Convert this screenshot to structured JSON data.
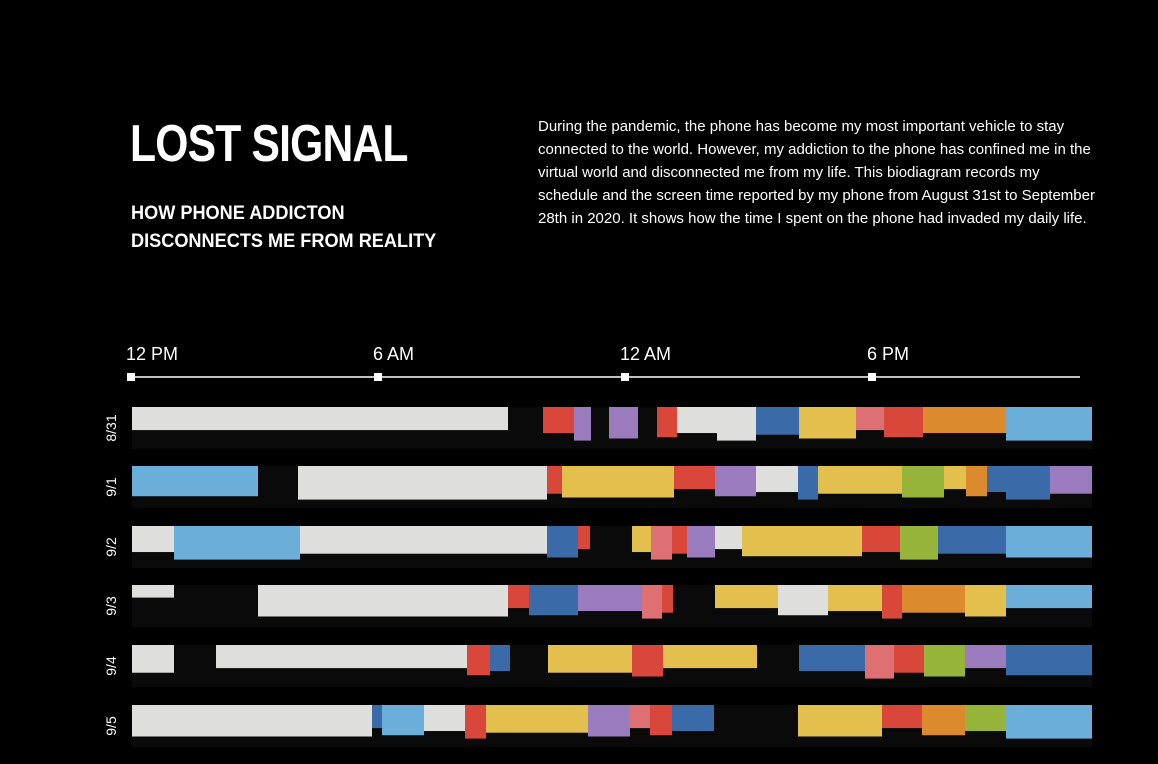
{
  "header": {
    "title": "LOST SIGNAL",
    "subtitle_lines": [
      "HOW PHONE ADDICTON",
      "DISCONNECTS ME FROM REALITY"
    ],
    "description_lines": [
      "During the pandemic, the phone has become my most important vehicle to stay",
      "connected to the world. However, my addiction to the phone has confined me in the",
      "virtual world and disconnected me from my life. This biodiagram records my",
      "schedule and the screen time reported by my phone from August 31st to September",
      "28th in 2020. It shows how the time I spent on the phone had invaded my daily life."
    ]
  },
  "timeline": {
    "ticks": [
      "12 PM",
      "6 AM",
      "12 AM",
      "6 PM"
    ]
  },
  "colors": {
    "sleep": "#dedfdd",
    "black": "#0a0a0a",
    "blue": "#3a6aa8",
    "lightblue": "#6aaed9",
    "yellow": "#e3c04d",
    "orange": "#db8a2e",
    "red": "#d84739",
    "pink": "#de6f73",
    "purple": "#9a7bbd",
    "green": "#97b43a"
  },
  "days": [
    {
      "label": "8/31",
      "segments": [
        {
          "start": 0,
          "end": 376,
          "category": "sleep",
          "level": 1
        },
        {
          "start": 376,
          "end": 411,
          "category": "black",
          "level": 0.35
        },
        {
          "start": 411,
          "end": 442,
          "category": "red",
          "level": 1
        },
        {
          "start": 442,
          "end": 459,
          "category": "purple",
          "level": 1
        },
        {
          "start": 459,
          "end": 477,
          "category": "black",
          "level": 1
        },
        {
          "start": 477,
          "end": 506,
          "category": "purple",
          "level": 1
        },
        {
          "start": 506,
          "end": 525,
          "category": "black",
          "level": 1
        },
        {
          "start": 525,
          "end": 545,
          "category": "red",
          "level": 1
        },
        {
          "start": 545,
          "end": 585,
          "category": "sleep",
          "level": 1
        },
        {
          "start": 585,
          "end": 624,
          "category": "sleep",
          "level": 1
        },
        {
          "start": 624,
          "end": 667,
          "category": "blue",
          "level": 1
        },
        {
          "start": 667,
          "end": 724,
          "category": "yellow",
          "level": 1
        },
        {
          "start": 724,
          "end": 752,
          "category": "pink",
          "level": 1
        },
        {
          "start": 752,
          "end": 791,
          "category": "red",
          "level": 1
        },
        {
          "start": 791,
          "end": 874,
          "category": "orange",
          "level": 1
        },
        {
          "start": 874,
          "end": 960,
          "category": "lightblue",
          "level": 1
        }
      ]
    },
    {
      "label": "9/1",
      "segments": [
        {
          "start": 0,
          "end": 126,
          "category": "lightblue",
          "level": 1
        },
        {
          "start": 126,
          "end": 166,
          "category": "black",
          "level": 0.3
        },
        {
          "start": 166,
          "end": 415,
          "category": "sleep",
          "level": 1
        },
        {
          "start": 415,
          "end": 430,
          "category": "red",
          "level": 1
        },
        {
          "start": 430,
          "end": 542,
          "category": "yellow",
          "level": 1
        },
        {
          "start": 542,
          "end": 583,
          "category": "red",
          "level": 1
        },
        {
          "start": 583,
          "end": 624,
          "category": "purple",
          "level": 1
        },
        {
          "start": 624,
          "end": 666,
          "category": "sleep",
          "level": 1
        },
        {
          "start": 666,
          "end": 686,
          "category": "blue",
          "level": 1
        },
        {
          "start": 686,
          "end": 770,
          "category": "yellow",
          "level": 1
        },
        {
          "start": 770,
          "end": 812,
          "category": "green",
          "level": 1
        },
        {
          "start": 812,
          "end": 834,
          "category": "yellow",
          "level": 1
        },
        {
          "start": 834,
          "end": 855,
          "category": "orange",
          "level": 1
        },
        {
          "start": 855,
          "end": 874,
          "category": "blue",
          "level": 1
        },
        {
          "start": 874,
          "end": 918,
          "category": "blue",
          "level": 1
        },
        {
          "start": 918,
          "end": 960,
          "category": "purple",
          "level": 1
        }
      ]
    },
    {
      "label": "9/2",
      "segments": [
        {
          "start": 0,
          "end": 42,
          "category": "sleep",
          "level": 1
        },
        {
          "start": 42,
          "end": 168,
          "category": "lightblue",
          "level": 1
        },
        {
          "start": 168,
          "end": 415,
          "category": "sleep",
          "level": 1
        },
        {
          "start": 415,
          "end": 446,
          "category": "blue",
          "level": 1
        },
        {
          "start": 446,
          "end": 458,
          "category": "red",
          "level": 1
        },
        {
          "start": 458,
          "end": 500,
          "category": "black",
          "level": 1
        },
        {
          "start": 500,
          "end": 519,
          "category": "yellow",
          "level": 1
        },
        {
          "start": 519,
          "end": 540,
          "category": "pink",
          "level": 1
        },
        {
          "start": 540,
          "end": 555,
          "category": "red",
          "level": 1
        },
        {
          "start": 555,
          "end": 583,
          "category": "purple",
          "level": 1
        },
        {
          "start": 583,
          "end": 610,
          "category": "sleep",
          "level": 1
        },
        {
          "start": 610,
          "end": 730,
          "category": "yellow",
          "level": 1
        },
        {
          "start": 730,
          "end": 768,
          "category": "red",
          "level": 1
        },
        {
          "start": 768,
          "end": 806,
          "category": "green",
          "level": 1
        },
        {
          "start": 806,
          "end": 874,
          "category": "blue",
          "level": 1
        },
        {
          "start": 874,
          "end": 960,
          "category": "lightblue",
          "level": 1
        }
      ]
    },
    {
      "label": "9/3",
      "segments": [
        {
          "start": 0,
          "end": 42,
          "category": "sleep",
          "level": 0.3
        },
        {
          "start": 42,
          "end": 126,
          "category": "black",
          "level": 1
        },
        {
          "start": 126,
          "end": 376,
          "category": "sleep",
          "level": 1
        },
        {
          "start": 376,
          "end": 397,
          "category": "red",
          "level": 1
        },
        {
          "start": 397,
          "end": 446,
          "category": "blue",
          "level": 1
        },
        {
          "start": 446,
          "end": 510,
          "category": "purple",
          "level": 1
        },
        {
          "start": 510,
          "end": 530,
          "category": "pink",
          "level": 1
        },
        {
          "start": 530,
          "end": 541,
          "category": "red",
          "level": 1
        },
        {
          "start": 541,
          "end": 583,
          "category": "black",
          "level": 1
        },
        {
          "start": 583,
          "end": 646,
          "category": "yellow",
          "level": 1
        },
        {
          "start": 646,
          "end": 696,
          "category": "sleep",
          "level": 1
        },
        {
          "start": 696,
          "end": 750,
          "category": "yellow",
          "level": 1
        },
        {
          "start": 750,
          "end": 770,
          "category": "red",
          "level": 1
        },
        {
          "start": 770,
          "end": 833,
          "category": "orange",
          "level": 1
        },
        {
          "start": 833,
          "end": 874,
          "category": "yellow",
          "level": 1
        },
        {
          "start": 874,
          "end": 960,
          "category": "lightblue",
          "level": 1
        }
      ]
    },
    {
      "label": "9/4",
      "segments": [
        {
          "start": 0,
          "end": 42,
          "category": "sleep",
          "level": 1
        },
        {
          "start": 42,
          "end": 84,
          "category": "black",
          "level": 1
        },
        {
          "start": 84,
          "end": 335,
          "category": "sleep",
          "level": 1
        },
        {
          "start": 335,
          "end": 358,
          "category": "red",
          "level": 1
        },
        {
          "start": 358,
          "end": 378,
          "category": "blue",
          "level": 1
        },
        {
          "start": 378,
          "end": 416,
          "category": "black",
          "level": 1
        },
        {
          "start": 416,
          "end": 500,
          "category": "yellow",
          "level": 1
        },
        {
          "start": 500,
          "end": 531,
          "category": "red",
          "level": 1
        },
        {
          "start": 531,
          "end": 625,
          "category": "yellow",
          "level": 1
        },
        {
          "start": 625,
          "end": 667,
          "category": "black",
          "level": 1
        },
        {
          "start": 667,
          "end": 733,
          "category": "blue",
          "level": 1
        },
        {
          "start": 733,
          "end": 762,
          "category": "pink",
          "level": 1
        },
        {
          "start": 762,
          "end": 792,
          "category": "red",
          "level": 1
        },
        {
          "start": 792,
          "end": 833,
          "category": "green",
          "level": 1
        },
        {
          "start": 833,
          "end": 874,
          "category": "purple",
          "level": 1
        },
        {
          "start": 874,
          "end": 960,
          "category": "blue",
          "level": 1
        }
      ]
    },
    {
      "label": "9/5",
      "segments": [
        {
          "start": 0,
          "end": 240,
          "category": "sleep",
          "level": 1
        },
        {
          "start": 240,
          "end": 250,
          "category": "blue",
          "level": 1
        },
        {
          "start": 250,
          "end": 292,
          "category": "lightblue",
          "level": 1
        },
        {
          "start": 292,
          "end": 333,
          "category": "sleep",
          "level": 1
        },
        {
          "start": 333,
          "end": 354,
          "category": "red",
          "level": 1
        },
        {
          "start": 354,
          "end": 456,
          "category": "yellow",
          "level": 1
        },
        {
          "start": 456,
          "end": 498,
          "category": "purple",
          "level": 1
        },
        {
          "start": 498,
          "end": 518,
          "category": "pink",
          "level": 1
        },
        {
          "start": 518,
          "end": 540,
          "category": "red",
          "level": 1
        },
        {
          "start": 540,
          "end": 582,
          "category": "blue",
          "level": 1
        },
        {
          "start": 582,
          "end": 624,
          "category": "black",
          "level": 1
        },
        {
          "start": 624,
          "end": 666,
          "category": "black",
          "level": 1
        },
        {
          "start": 666,
          "end": 750,
          "category": "yellow",
          "level": 1
        },
        {
          "start": 750,
          "end": 790,
          "category": "red",
          "level": 1
        },
        {
          "start": 790,
          "end": 833,
          "category": "orange",
          "level": 1
        },
        {
          "start": 833,
          "end": 874,
          "category": "green",
          "level": 1
        },
        {
          "start": 874,
          "end": 960,
          "category": "lightblue",
          "level": 1
        }
      ]
    }
  ]
}
